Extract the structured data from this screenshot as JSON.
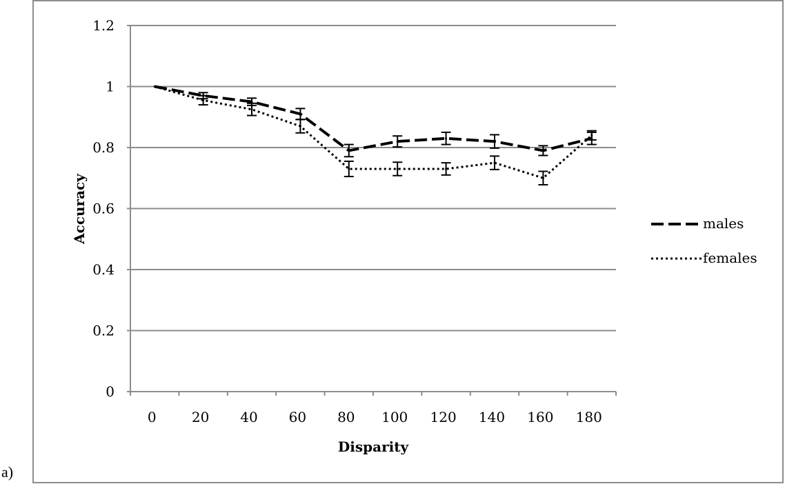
{
  "panel_label": "a)",
  "chart_data": {
    "type": "line",
    "xlabel": "Disparity",
    "ylabel": "Accuracy",
    "categories": [
      "0",
      "20",
      "40",
      "60",
      "80",
      "100",
      "120",
      "140",
      "160",
      "180"
    ],
    "y_ticks": [
      "0",
      "0.2",
      "0.4",
      "0.6",
      "0.8",
      "1",
      "1.2"
    ],
    "ylim": [
      0,
      1.2
    ],
    "grid": true,
    "legend_position": "right",
    "series": [
      {
        "name": "males",
        "style": "dashed",
        "values": [
          1.0,
          0.97,
          0.95,
          0.91,
          0.79,
          0.82,
          0.83,
          0.82,
          0.79,
          0.83
        ],
        "error": [
          0.0,
          0.01,
          0.012,
          0.018,
          0.02,
          0.018,
          0.02,
          0.022,
          0.016,
          0.02
        ]
      },
      {
        "name": "females",
        "style": "dotted",
        "values": [
          1.0,
          0.955,
          0.925,
          0.87,
          0.73,
          0.73,
          0.73,
          0.75,
          0.7,
          0.84
        ],
        "error": [
          0.0,
          0.015,
          0.02,
          0.022,
          0.025,
          0.022,
          0.02,
          0.022,
          0.022,
          0.015
        ]
      }
    ]
  }
}
